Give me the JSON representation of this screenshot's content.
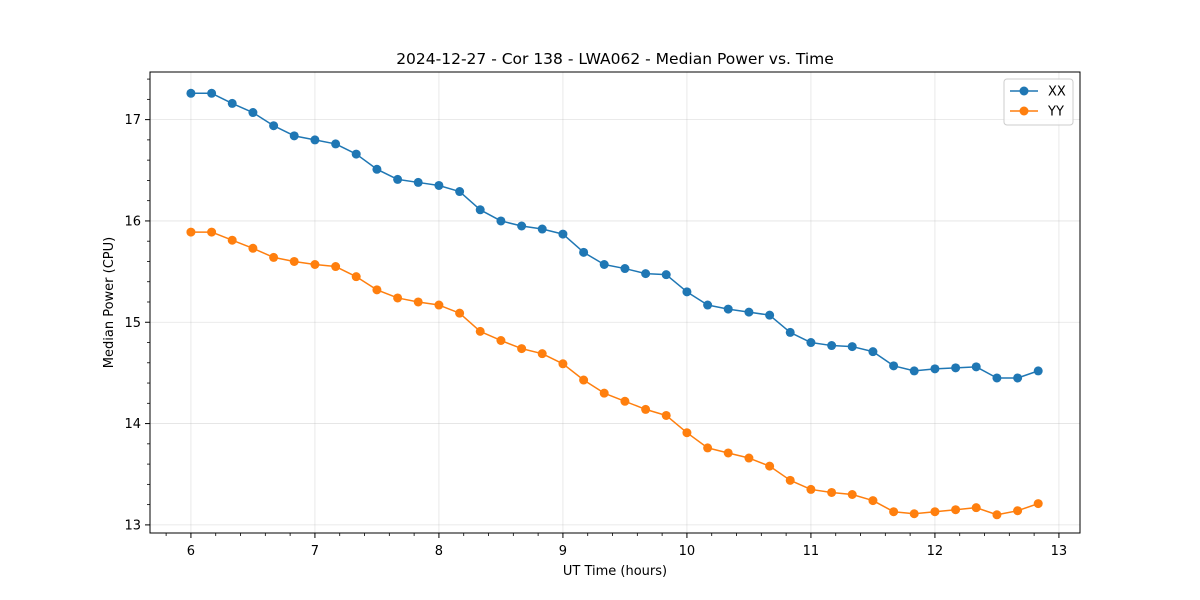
{
  "chart_data": {
    "type": "line",
    "title": "2024-12-27 - Cor 138 - LWA062 - Median Power vs. Time",
    "xlabel": "UT Time (hours)",
    "ylabel": "Median Power (CPU)",
    "xlim": [
      5.67,
      13.17
    ],
    "ylim": [
      12.92,
      17.47
    ],
    "xticks": [
      6,
      7,
      8,
      9,
      10,
      11,
      12,
      13
    ],
    "xtick_labels": [
      "6",
      "7",
      "8",
      "9",
      "10",
      "11",
      "12",
      "13"
    ],
    "yticks": [
      13,
      14,
      15,
      16,
      17
    ],
    "ytick_labels": [
      "13",
      "14",
      "15",
      "16",
      "17"
    ],
    "grid": true,
    "legend_position": "top-right",
    "x": [
      6.0,
      6.167,
      6.333,
      6.5,
      6.667,
      6.833,
      7.0,
      7.167,
      7.333,
      7.5,
      7.667,
      7.833,
      8.0,
      8.167,
      8.333,
      8.5,
      8.667,
      8.833,
      9.0,
      9.167,
      9.333,
      9.5,
      9.667,
      9.833,
      10.0,
      10.167,
      10.333,
      10.5,
      10.667,
      10.833,
      11.0,
      11.167,
      11.333,
      11.5,
      11.667,
      11.833,
      12.0,
      12.167,
      12.333,
      12.5,
      12.667,
      12.833
    ],
    "series": [
      {
        "name": "XX",
        "color": "#1f77b4",
        "values": [
          17.26,
          17.26,
          17.16,
          17.07,
          16.94,
          16.84,
          16.8,
          16.76,
          16.66,
          16.51,
          16.41,
          16.38,
          16.35,
          16.29,
          16.11,
          16.0,
          15.95,
          15.92,
          15.87,
          15.69,
          15.57,
          15.53,
          15.48,
          15.47,
          15.3,
          15.17,
          15.13,
          15.1,
          15.07,
          14.9,
          14.8,
          14.77,
          14.76,
          14.71,
          14.57,
          14.52,
          14.54,
          14.55,
          14.56,
          14.45,
          14.45,
          14.52
        ]
      },
      {
        "name": "YY",
        "color": "#ff7f0e",
        "values": [
          15.89,
          15.89,
          15.81,
          15.73,
          15.64,
          15.6,
          15.57,
          15.55,
          15.45,
          15.32,
          15.24,
          15.2,
          15.17,
          15.09,
          14.91,
          14.82,
          14.74,
          14.69,
          14.59,
          14.43,
          14.3,
          14.22,
          14.14,
          14.08,
          13.91,
          13.76,
          13.71,
          13.66,
          13.58,
          13.44,
          13.35,
          13.32,
          13.3,
          13.24,
          13.13,
          13.11,
          13.13,
          13.15,
          13.17,
          13.1,
          13.14,
          13.21
        ]
      }
    ]
  }
}
